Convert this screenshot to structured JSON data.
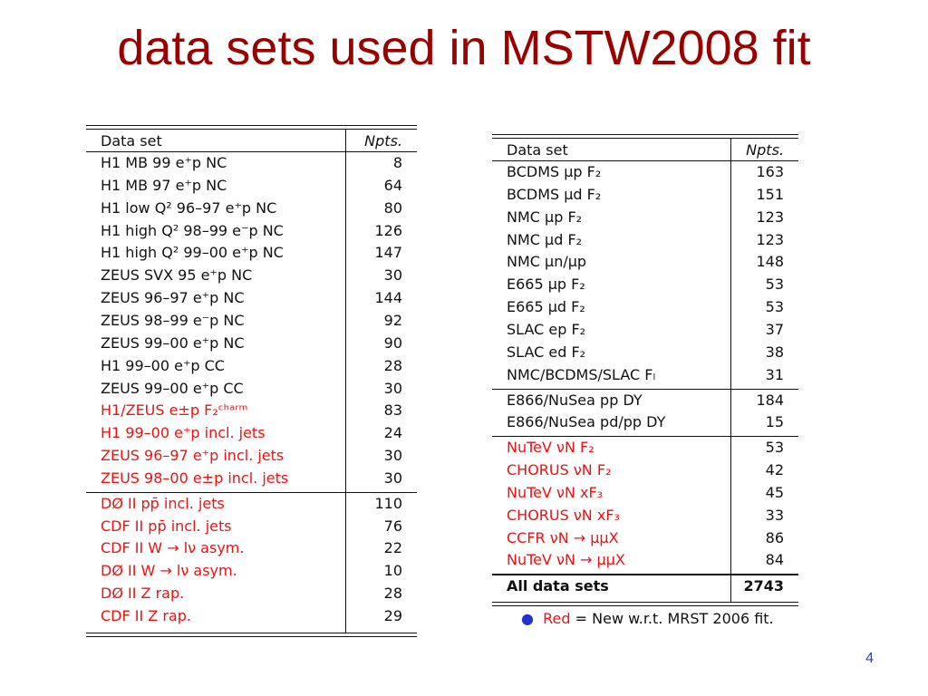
{
  "title": "data sets used in MSTW2008 fit",
  "left_table": {
    "header": [
      "Data set",
      "Npts."
    ],
    "sections": [
      [
        {
          "color": "#111111",
          "rows": [
            [
              "H1 MB 99 e⁺p NC",
              8
            ],
            [
              "H1 MB 97 e⁺p NC",
              64
            ],
            [
              "H1 low Q² 96–97 e⁺p NC",
              80
            ],
            [
              "H1 high Q² 98–99 e⁻p NC",
              126
            ],
            [
              "H1 high Q² 99–00 e⁺p NC",
              147
            ],
            [
              "ZEUS SVX 95 e⁺p NC",
              30
            ],
            [
              "ZEUS 96–97 e⁺p NC",
              144
            ],
            [
              "ZEUS 98–99 e⁻p NC",
              92
            ],
            [
              "ZEUS 99–00 e⁺p NC",
              90
            ],
            [
              "H1 99–00 e⁺p CC",
              28
            ],
            [
              "ZEUS 99–00 e⁺p CC",
              30
            ]
          ]
        },
        {
          "color": "#ee1111",
          "rows": [
            [
              "H1/ZEUS e±p F₂ᶜʰᵃʳᵐ",
              83
            ],
            [
              "H1 99–00 e⁺p incl. jets",
              24
            ],
            [
              "ZEUS 96–97 e⁺p incl. jets",
              30
            ],
            [
              "ZEUS 98–00 e±p incl. jets",
              30
            ]
          ]
        }
      ],
      [
        {
          "color": "#ee1111",
          "rows": [
            [
              "DØ II pp̄ incl. jets",
              110
            ],
            [
              "CDF II pp̄ incl. jets",
              76
            ],
            [
              "CDF II W → lν asym.",
              22
            ],
            [
              "DØ II W → lν asym.",
              10
            ],
            [
              "DØ II Z rap.",
              28
            ],
            [
              "CDF II Z rap.",
              29
            ]
          ]
        }
      ]
    ]
  },
  "right_table": {
    "header": [
      "Data set",
      "Npts."
    ],
    "sections": [
      [
        {
          "color": "#111111",
          "rows": [
            [
              "BCDMS μp F₂",
              163
            ],
            [
              "BCDMS μd F₂",
              151
            ],
            [
              "NMC μp F₂",
              123
            ],
            [
              "NMC μd F₂",
              123
            ],
            [
              "NMC μn/μp",
              148
            ],
            [
              "E665 μp F₂",
              53
            ],
            [
              "E665 μd F₂",
              53
            ],
            [
              "SLAC ep F₂",
              37
            ],
            [
              "SLAC ed F₂",
              38
            ],
            [
              "NMC/BCDMS/SLAC Fₗ",
              31
            ]
          ]
        }
      ],
      [
        {
          "color": "#111111",
          "rows": [
            [
              "E866/NuSea pp DY",
              184
            ],
            [
              "E866/NuSea pd/pp DY",
              15
            ]
          ]
        }
      ],
      [
        {
          "color": "#ee1111",
          "rows": [
            [
              "NuTeV νN F₂",
              53
            ],
            [
              "CHORUS νN F₂",
              42
            ],
            [
              "NuTeV νN xF₃",
              45
            ],
            [
              "CHORUS νN xF₃",
              33
            ],
            [
              "CCFR νN → μμX",
              86
            ],
            [
              "NuTeV νN → μμX",
              84
            ]
          ]
        }
      ]
    ],
    "total": [
      "All data sets",
      2743
    ]
  },
  "note": {
    "highlight": "Red",
    "text": "= New w.r.t. MRST 2006 fit."
  },
  "page_number": "4"
}
